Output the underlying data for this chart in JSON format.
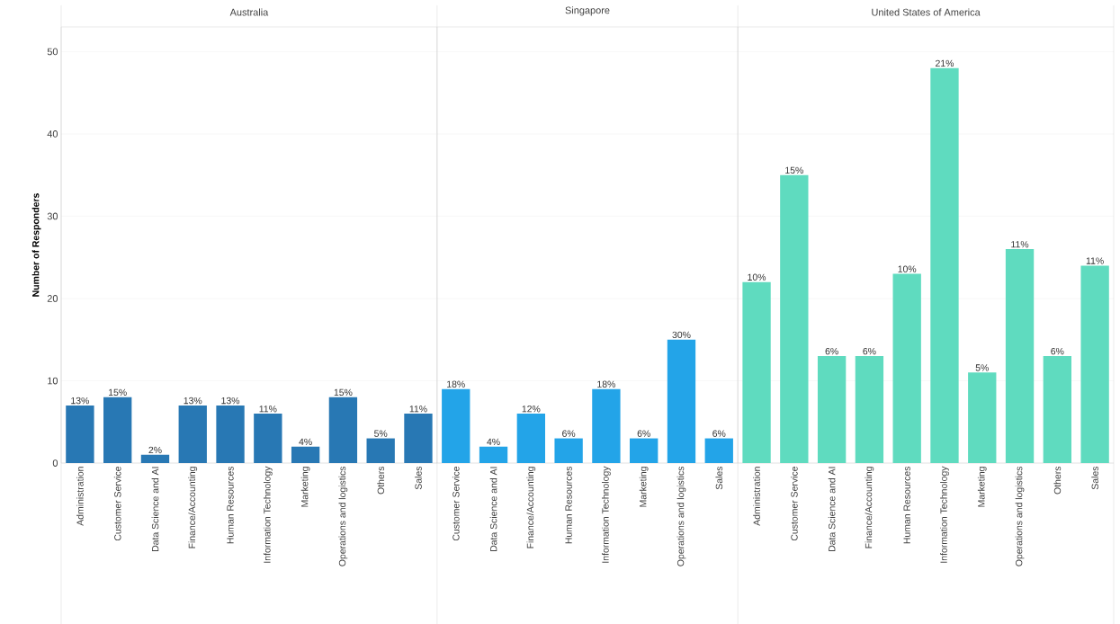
{
  "chart_data": [
    {
      "type": "bar",
      "title": "Australia",
      "ylabel": "Number of Responders",
      "categories": [
        "Administration",
        "Customer Service",
        "Data Science and AI",
        "Finance/Accounting",
        "Human Resources",
        "Information Technology",
        "Marketing",
        "Operations and logistics",
        "Others",
        "Sales"
      ],
      "values": [
        7,
        8,
        1,
        7,
        7,
        6,
        2,
        8,
        3,
        6
      ],
      "annotations": [
        {
          "text": "13%",
          "x": "Administration",
          "y": 7
        },
        {
          "text": "15%",
          "x": "Customer Service",
          "y": 8
        },
        {
          "text": "2%",
          "x": "Data Science and AI",
          "y": 1
        },
        {
          "text": "13%",
          "x": "Finance/Accounting",
          "y": 7
        },
        {
          "text": "13%",
          "x": "Human Resources",
          "y": 7
        },
        {
          "text": "11%",
          "x": "Information Technology",
          "y": 6
        },
        {
          "text": "4%",
          "x": "Marketing",
          "y": 2
        },
        {
          "text": "15%",
          "x": "Operations and logistics",
          "y": 8
        },
        {
          "text": "5%",
          "x": "Others",
          "y": 3
        },
        {
          "text": "11%",
          "x": "Sales",
          "y": 6
        }
      ],
      "color": "#2878b4",
      "ylim": [
        0,
        53
      ],
      "yticks": [
        0,
        10,
        20,
        30,
        40,
        50
      ],
      "grid": "y"
    },
    {
      "type": "bar",
      "title": "Singapore",
      "categories": [
        "Customer Service",
        "Data Science and AI",
        "Finance/Accounting",
        "Human Resources",
        "Information Technology",
        "Marketing",
        "Operations and logistics",
        "Sales"
      ],
      "values": [
        9,
        2,
        6,
        3,
        9,
        3,
        15,
        3
      ],
      "annotations": [
        {
          "text": "18%",
          "x": "Customer Service",
          "y": 9
        },
        {
          "text": "4%",
          "x": "Data Science and AI",
          "y": 2
        },
        {
          "text": "12%",
          "x": "Finance/Accounting",
          "y": 6
        },
        {
          "text": "6%",
          "x": "Human Resources",
          "y": 3
        },
        {
          "text": "18%",
          "x": "Information Technology",
          "y": 9
        },
        {
          "text": "6%",
          "x": "Marketing",
          "y": 3
        },
        {
          "text": "30%",
          "x": "Operations and logistics",
          "y": 15
        },
        {
          "text": "6%",
          "x": "Sales",
          "y": 3
        }
      ],
      "color": "#23a4e8",
      "ylim": [
        0,
        53
      ],
      "yticks": [
        0,
        10,
        20,
        30,
        40,
        50
      ],
      "grid": "y",
      "tick_labels": "x"
    },
    {
      "type": "bar",
      "title": "United States of America",
      "categories": [
        "Administration",
        "Customer Service",
        "Data Science and AI",
        "Finance/Accounting",
        "Human Resources",
        "Information Technology",
        "Marketing",
        "Operations and logistics",
        "Others",
        "Sales"
      ],
      "values": [
        22,
        35,
        13,
        13,
        23,
        48,
        11,
        26,
        13,
        24
      ],
      "annotations": [
        {
          "text": "10%",
          "x": "Administration",
          "y": 22
        },
        {
          "text": "15%",
          "x": "Customer Service",
          "y": 35
        },
        {
          "text": "6%",
          "x": "Data Science and AI",
          "y": 13
        },
        {
          "text": "6%",
          "x": "Finance/Accounting",
          "y": 13
        },
        {
          "text": "10%",
          "x": "Human Resources",
          "y": 23
        },
        {
          "text": "21%",
          "x": "Information Technology",
          "y": 48
        },
        {
          "text": "5%",
          "x": "Marketing",
          "y": 11
        },
        {
          "text": "11%",
          "x": "Operations and logistics",
          "y": 26
        },
        {
          "text": "6%",
          "x": "Others",
          "y": 13
        },
        {
          "text": "11%",
          "x": "Sales",
          "y": 24
        }
      ],
      "color": "#5fdbbf",
      "ylim": [
        0,
        53
      ],
      "yticks": [
        0,
        10,
        20,
        30,
        40,
        50
      ],
      "grid": "y",
      "tick_labels": "x"
    }
  ]
}
